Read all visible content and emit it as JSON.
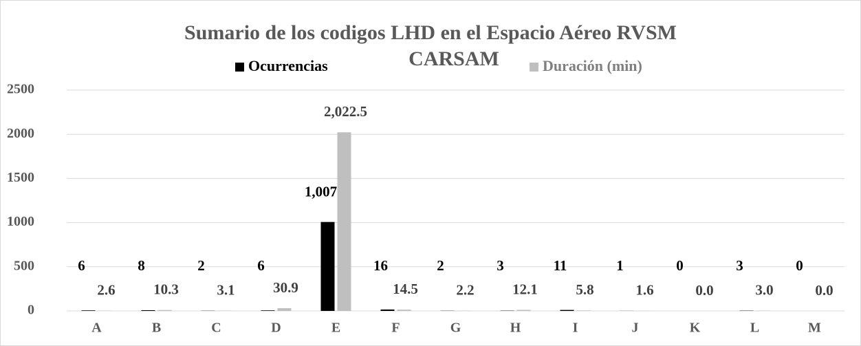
{
  "chart_data": {
    "type": "bar",
    "title": [
      "Sumario de los codigos LHD en el Espacio Aéreo RVSM",
      "CARSAM"
    ],
    "categories": [
      "A",
      "B",
      "C",
      "D",
      "E",
      "F",
      "G",
      "H",
      "I",
      "J",
      "K",
      "L",
      "M"
    ],
    "series": [
      {
        "name": "Ocurrencias",
        "color": "#000000",
        "values": [
          6,
          8,
          2,
          6,
          1007,
          16,
          2,
          3,
          11,
          1,
          0,
          3,
          0
        ],
        "value_labels": [
          "6",
          "8",
          "2",
          "6",
          "1,007",
          "16",
          "2",
          "3",
          "11",
          "1",
          "0",
          "3",
          "0"
        ]
      },
      {
        "name": "Duración (min)",
        "color": "#bfbfbf",
        "values": [
          2.6,
          10.3,
          3.1,
          30.9,
          2022.5,
          14.5,
          2.2,
          12.1,
          5.8,
          1.6,
          0.0,
          3.0,
          0.0
        ],
        "value_labels": [
          "2.6",
          "10.3",
          "3.1",
          "30.9",
          "2,022.5",
          "14.5",
          "2.2",
          "12.1",
          "5.8",
          "1.6",
          "0.0",
          "3.0",
          "0.0"
        ]
      }
    ],
    "ylim": [
      0,
      2500
    ],
    "yticks": [
      0,
      500,
      1000,
      1500,
      2000,
      2500
    ],
    "grid": true
  }
}
